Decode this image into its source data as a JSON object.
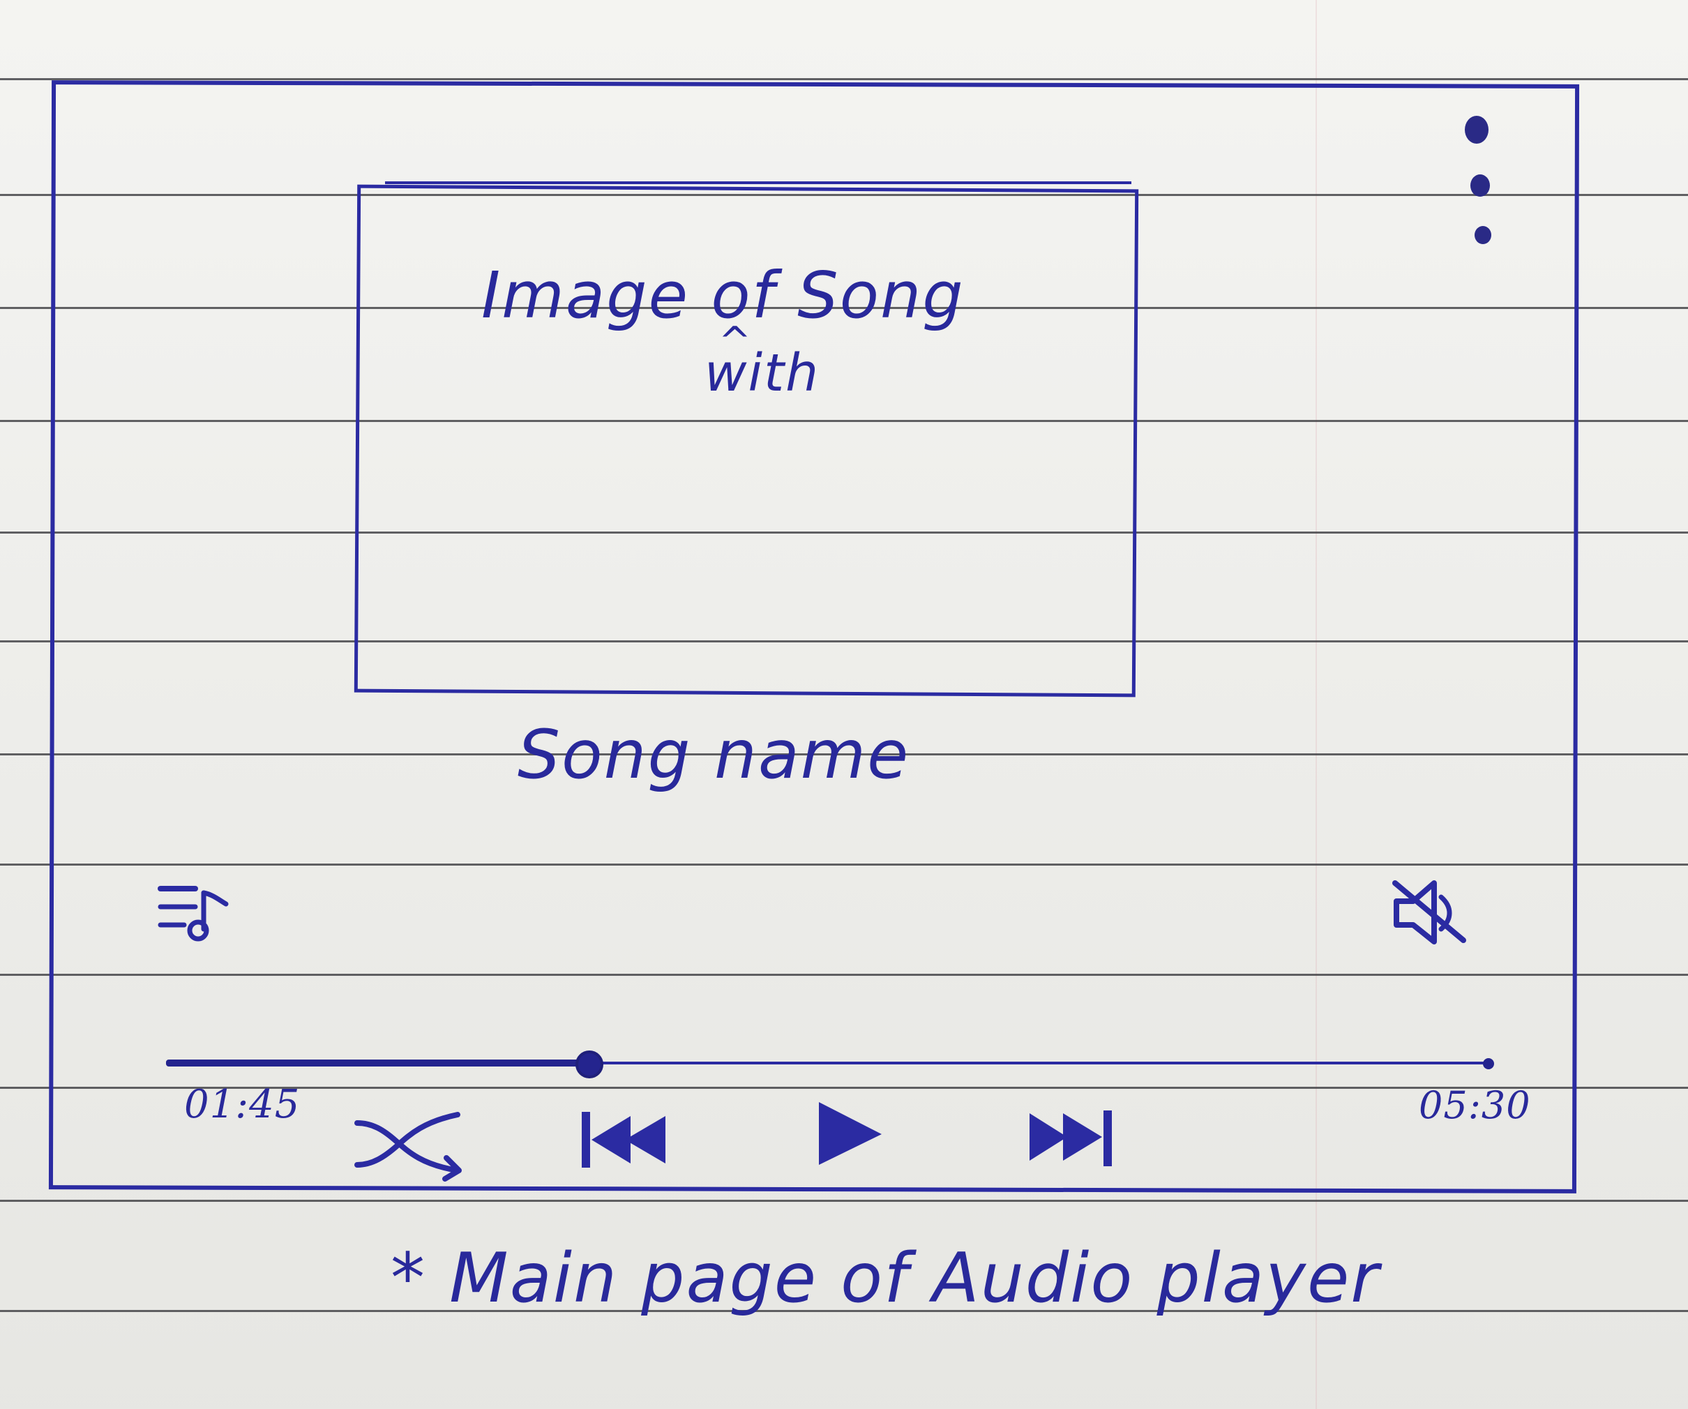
{
  "image_box": {
    "line1": "Image of Song",
    "line2": "with"
  },
  "song": {
    "name": "Song name"
  },
  "playback": {
    "current_time": "01:45",
    "total_time": "05:30",
    "progress_fraction": 0.32
  },
  "caption": "* Main page of Audio player",
  "icons": {
    "more_menu": "more-vertical-icon",
    "playlist": "playlist-icon",
    "mute": "mute-icon",
    "shuffle": "shuffle-icon",
    "previous": "skip-previous-icon",
    "play": "play-icon",
    "next": "skip-next-icon"
  },
  "colors": {
    "ink": "#2b2ba2",
    "paper": "#eeeeea",
    "rule": "#3f3f43"
  }
}
